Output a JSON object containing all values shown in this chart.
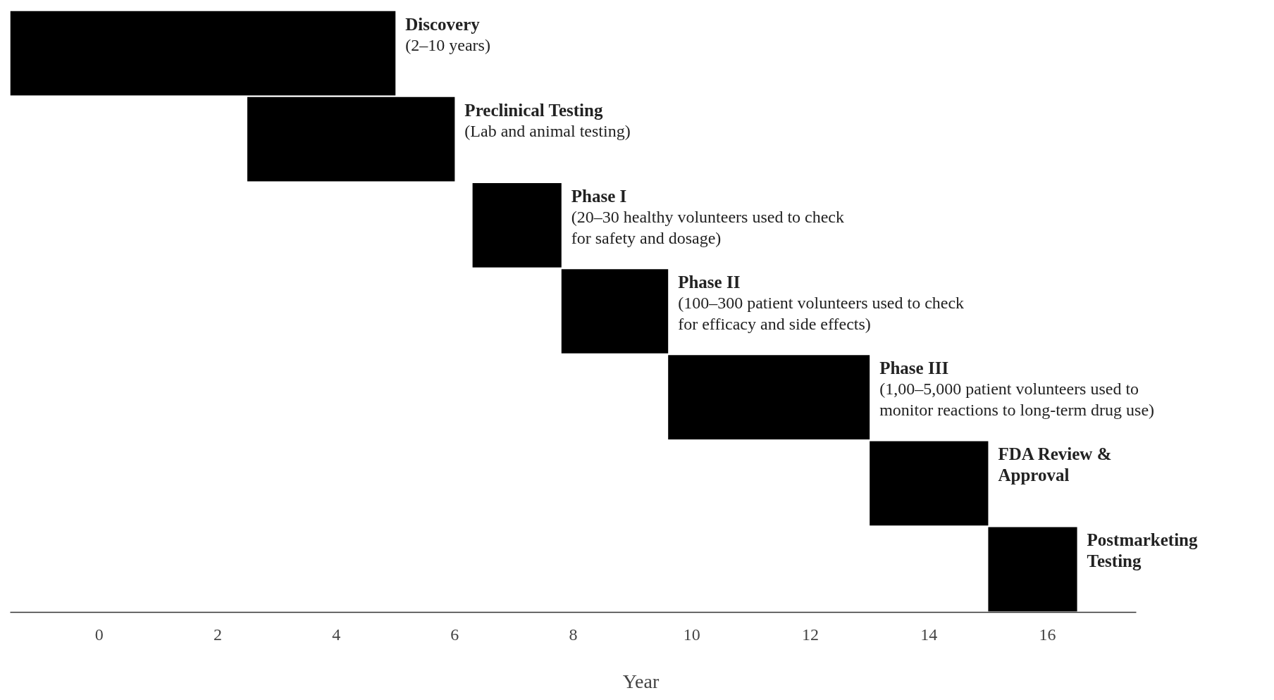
{
  "chart_data": {
    "type": "bar",
    "orientation": "horizontal",
    "xlabel": "Year",
    "categories": [
      "Discovery",
      "Preclinical Testing",
      "Phase I",
      "Phase II",
      "Phase III",
      "FDA Review & Approval",
      "Postmarketing Testing"
    ],
    "base": [
      -1.5,
      2.5,
      6.3,
      7.8,
      9.6,
      13,
      15
    ],
    "values": [
      6.5,
      3.5,
      1.5,
      1.8,
      3.4,
      2,
      1.5
    ],
    "color": "#000000",
    "xlim": [
      -1.5,
      17.5
    ],
    "xticks": [
      0,
      2,
      4,
      6,
      8,
      10,
      12,
      14,
      16
    ],
    "grid": false,
    "annotations": [
      {
        "text": "(2–10 years)",
        "x": 5,
        "y": "Discovery"
      },
      {
        "text": "(Lab and animal testing)",
        "x": 6,
        "y": "Preclinical Testing"
      },
      {
        "text": "(20–30 healthy volunteers used to check for safety and dosage)",
        "x": 7.8,
        "y": "Phase I"
      },
      {
        "text": "(100–300 patient volunteers used to check for efficacy and side effects)",
        "x": 9.6,
        "y": "Phase II"
      },
      {
        "text": "(1,00–5,000 patient volunteers used to monitor reactions to long-term drug use)",
        "x": 13,
        "y": "Phase III"
      }
    ]
  }
}
